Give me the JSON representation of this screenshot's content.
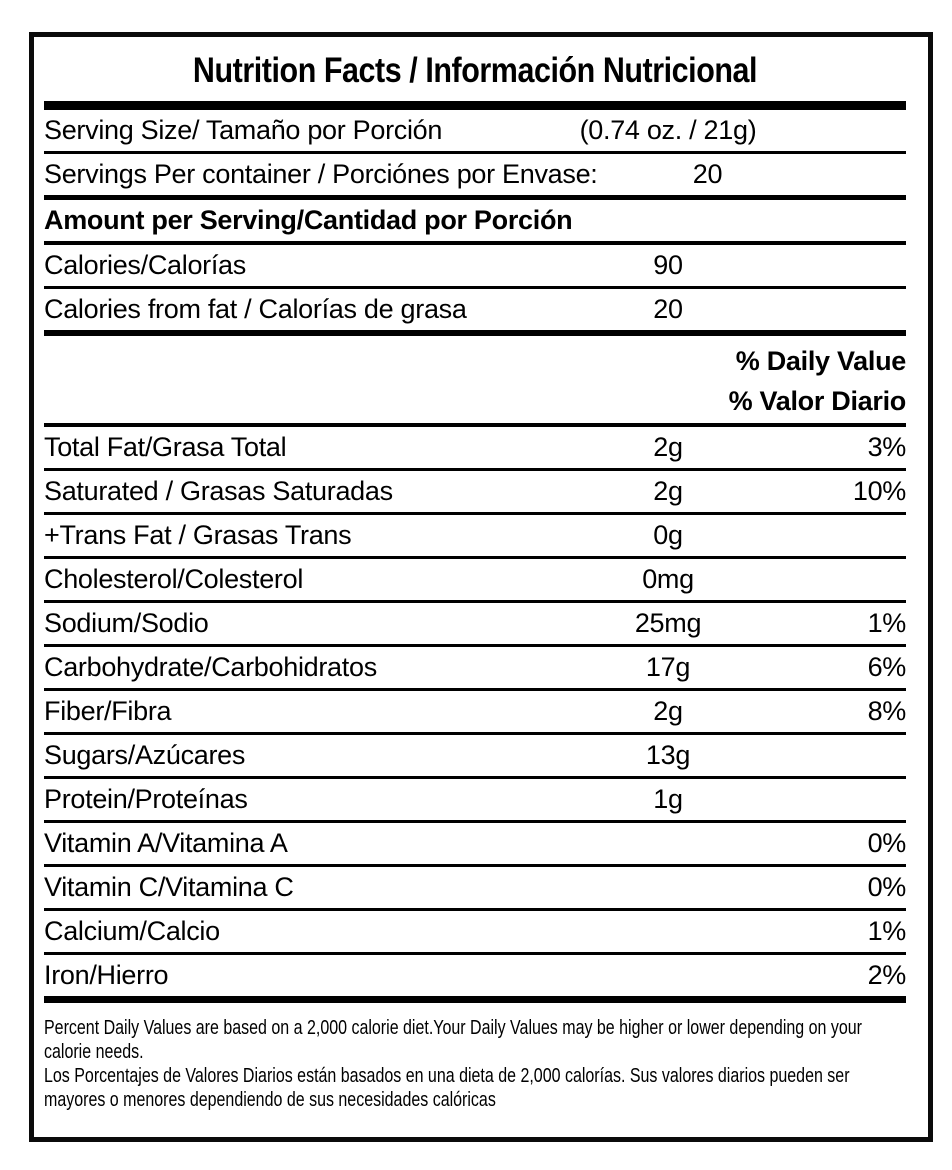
{
  "colors": {
    "ink": "#000000",
    "background": "#ffffff"
  },
  "label": {
    "title": "Nutrition Facts / Información Nutricional",
    "serving_size": {
      "label": "Serving Size/ Tamaño por Porción",
      "value": "(0.74 oz. / 21g)"
    },
    "servings_per_container": {
      "label": "Servings Per container / Porciónes por Envase:",
      "value": "20"
    },
    "amount_per_serving_header": "Amount per Serving/Cantidad por Porción",
    "calories": {
      "label": "Calories/Calorías",
      "value": "90"
    },
    "calories_from_fat": {
      "label": "Calories from fat / Calorías de grasa",
      "value": "20"
    },
    "daily_value_header": {
      "en": "% Daily Value",
      "es": "% Valor Diario"
    },
    "nutrients": [
      {
        "label": "Total Fat/Grasa Total",
        "amount": "2g",
        "dv": "3%"
      },
      {
        "label": "Saturated / Grasas Saturadas",
        "amount": "2g",
        "dv": "10%"
      },
      {
        "label": "+Trans Fat / Grasas Trans",
        "amount": "0g",
        "dv": ""
      },
      {
        "label": "Cholesterol/Colesterol",
        "amount": "0mg",
        "dv": ""
      },
      {
        "label": "Sodium/Sodio",
        "amount": "25mg",
        "dv": "1%"
      },
      {
        "label": "Carbohydrate/Carbohidratos",
        "amount": "17g",
        "dv": "6%"
      },
      {
        "label": "Fiber/Fibra",
        "amount": "2g",
        "dv": "8%"
      },
      {
        "label": "Sugars/Azúcares",
        "amount": "13g",
        "dv": ""
      },
      {
        "label": "Protein/Proteínas",
        "amount": "1g",
        "dv": ""
      },
      {
        "label": "Vitamin A/Vitamina A",
        "amount": "",
        "dv": "0%"
      },
      {
        "label": "Vitamin C/Vitamina C",
        "amount": "",
        "dv": "0%"
      },
      {
        "label": "Calcium/Calcio",
        "amount": "",
        "dv": "1%"
      },
      {
        "label": "Iron/Hierro",
        "amount": "",
        "dv": "2%"
      }
    ],
    "footnote": {
      "en": "Percent Daily Values are based on a 2,000 calorie diet.Your Daily Values may be higher or lower depending on your calorie needs.",
      "es": "Los Porcentajes de Valores Diarios están basados en una dieta de 2,000 calorías. Sus valores diarios pueden ser mayores o menores dependiendo de sus necesidades calóricas"
    }
  }
}
